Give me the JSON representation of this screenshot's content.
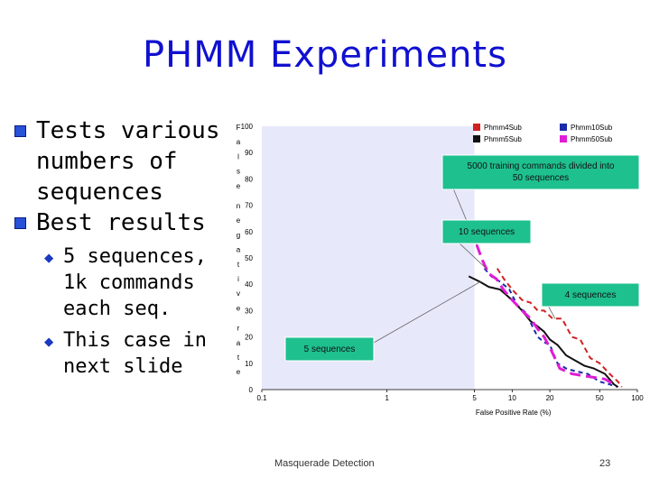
{
  "title": "PHMM Experiments",
  "bullets": {
    "b1": "Tests various numbers of sequences",
    "b2": "Best results",
    "sub1": "5 sequences, 1k commands each seq.",
    "sub2": "This case in next slide"
  },
  "footer": {
    "center": "Masquerade Detection",
    "page": "23"
  },
  "colors": {
    "title": "#1010d0",
    "bullet": "#2850d8",
    "callout_fill": "#1ec08e",
    "highlight_band": "#e8e8fb"
  },
  "chart_data": {
    "type": "line",
    "xscale": "log",
    "xlim": [
      0.1,
      100
    ],
    "ylim": [
      0,
      100
    ],
    "xticks": [
      "0.1",
      "1",
      "5",
      "10",
      "20",
      "50",
      "100"
    ],
    "yticks": [
      "0",
      "10",
      "20",
      "30",
      "40",
      "50",
      "60",
      "70",
      "80",
      "90",
      "100"
    ],
    "xlabel": "False Positive Rate (%)",
    "ylabel": "False Negative Rate",
    "ylabel_chars": [
      "F",
      "a",
      "l",
      "s",
      "e",
      "n",
      "e",
      "g",
      "a",
      "t",
      "i",
      "v",
      "e",
      "r",
      "a",
      "t",
      "e"
    ],
    "highlight_band_x": [
      0.1,
      5
    ],
    "legend": [
      "Phmm4Sub",
      "Phmm10Sub",
      "Phmm5Sub",
      "Phmm50Sub"
    ],
    "series": [
      {
        "name": "Phmm4Sub",
        "color": "#d32020",
        "dash": "6,4",
        "width": 2,
        "x": [
          7.6,
          8.6,
          10,
          12,
          14,
          16,
          18,
          21,
          25,
          30,
          35,
          42,
          50,
          60,
          70,
          75
        ],
        "y": [
          46,
          42,
          38,
          34,
          33,
          30,
          30,
          27,
          27,
          20,
          19,
          12,
          10,
          6,
          3,
          1
        ]
      },
      {
        "name": "Phmm10Sub",
        "color": "#1a2aa8",
        "dash": "5,4",
        "width": 2,
        "x": [
          6,
          6.8,
          8,
          9.5,
          11,
          13,
          14.5,
          16,
          18,
          20,
          23,
          27,
          32,
          40,
          50,
          60,
          70
        ],
        "y": [
          46,
          43,
          41,
          38,
          32,
          29,
          24,
          20,
          18,
          17,
          10,
          8,
          7,
          6,
          3,
          2,
          1
        ]
      },
      {
        "name": "Phmm5Sub",
        "color": "#111111",
        "dash": "",
        "width": 2,
        "x": [
          4.5,
          5.5,
          6.5,
          8,
          10,
          12,
          14,
          16,
          18,
          20,
          23,
          27,
          32,
          38,
          45,
          55,
          65,
          70
        ],
        "y": [
          43,
          41,
          39,
          38,
          34,
          30,
          26,
          24,
          22,
          19,
          17,
          13,
          11,
          9,
          8,
          6,
          2,
          1
        ]
      },
      {
        "name": "Phmm50Sub",
        "color": "#e01cd6",
        "dash": "12,6",
        "width": 3,
        "x": [
          5.2,
          5.8,
          6.5,
          7.5,
          8.5,
          10,
          12,
          14,
          16,
          18,
          20,
          24,
          30,
          40,
          55,
          65
        ],
        "y": [
          55,
          49,
          44,
          42,
          38,
          34,
          30,
          27,
          23,
          20,
          16,
          8,
          6,
          5,
          4,
          2
        ]
      }
    ],
    "annotations": [
      {
        "text": "5000 training commands divided into 50 sequences",
        "target": "Phmm50Sub"
      },
      {
        "text": "10 sequences",
        "target": "Phmm10Sub"
      },
      {
        "text": "4 sequences",
        "target": "Phmm4Sub"
      },
      {
        "text": "5 sequences",
        "target": "Phmm5Sub"
      }
    ]
  }
}
